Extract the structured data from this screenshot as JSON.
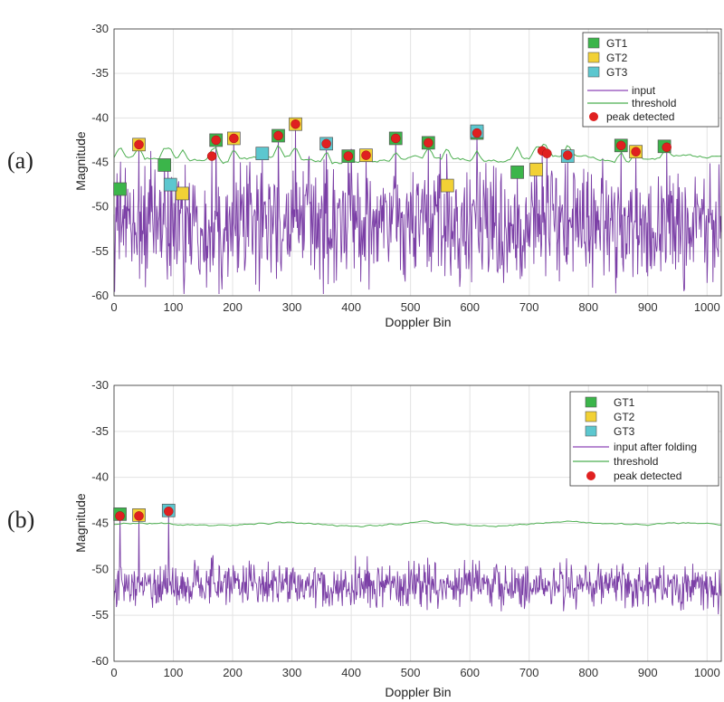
{
  "chart_data": [
    {
      "panel_label": "(a)",
      "type": "line",
      "xlabel": "Doppler Bin",
      "ylabel": "Magnitude",
      "xlim": [
        0,
        1024
      ],
      "ylim": [
        -60,
        -30
      ],
      "xticks": [
        "0",
        "100",
        "200",
        "300",
        "400",
        "500",
        "600",
        "700",
        "800",
        "900",
        "1000"
      ],
      "yticks": [
        "-30",
        "-35",
        "-40",
        "-45",
        "-50",
        "-55",
        "-60"
      ],
      "grid": true,
      "legend": {
        "position": "top-right",
        "entries": [
          {
            "label": "GT1",
            "marker": "square",
            "color": "#3bb54a"
          },
          {
            "label": "GT2",
            "marker": "square",
            "color": "#f2d135"
          },
          {
            "label": "GT3",
            "marker": "square",
            "color": "#5cc7cf"
          },
          {
            "label": "input",
            "marker": "line",
            "color": "#8e44b8"
          },
          {
            "label": "threshold",
            "marker": "line",
            "color": "#4caf50"
          },
          {
            "label": "peak detected",
            "marker": "circle",
            "color": "#e02020"
          }
        ]
      },
      "series": [
        {
          "name": "input",
          "color": "#7b3fa6",
          "noise_level": -52,
          "noise_spread": 3.2
        },
        {
          "name": "threshold",
          "color": "#4caf50",
          "base": -44.6,
          "spread": 0.7
        }
      ],
      "gt1": [
        [
          10,
          -48
        ],
        [
          85,
          -45.3
        ],
        [
          172,
          -42.5
        ],
        [
          277,
          -42
        ],
        [
          395,
          -44.3
        ],
        [
          475,
          -42.3
        ],
        [
          530,
          -42.8
        ],
        [
          612,
          -41.7
        ],
        [
          680,
          -46.1
        ],
        [
          855,
          -43.1
        ],
        [
          928,
          -43.2
        ]
      ],
      "gt2": [
        [
          42,
          -43
        ],
        [
          115,
          -48.5
        ],
        [
          202,
          -42.3
        ],
        [
          306,
          -40.7
        ],
        [
          425,
          -44.2
        ],
        [
          562,
          -47.6
        ],
        [
          712,
          -45.8
        ],
        [
          880,
          -43.8
        ]
      ],
      "gt3": [
        [
          95,
          -47.5
        ],
        [
          250,
          -44
        ],
        [
          358,
          -42.9
        ],
        [
          612,
          -41.5
        ],
        [
          765,
          -44.3
        ]
      ],
      "peaks": [
        [
          42,
          -43
        ],
        [
          165,
          -44.3
        ],
        [
          172,
          -42.5
        ],
        [
          202,
          -42.3
        ],
        [
          277,
          -42
        ],
        [
          306,
          -40.7
        ],
        [
          358,
          -42.9
        ],
        [
          395,
          -44.3
        ],
        [
          425,
          -44.2
        ],
        [
          475,
          -42.3
        ],
        [
          530,
          -42.8
        ],
        [
          612,
          -41.7
        ],
        [
          722,
          -43.7
        ],
        [
          730,
          -44
        ],
        [
          765,
          -44.2
        ],
        [
          855,
          -43.1
        ],
        [
          880,
          -43.8
        ],
        [
          932,
          -43.3
        ]
      ],
      "spikes": [
        [
          10,
          -48
        ],
        [
          42,
          -43
        ],
        [
          85,
          -45.3
        ],
        [
          95,
          -47.5
        ],
        [
          115,
          -48.5
        ],
        [
          165,
          -44.3
        ],
        [
          172,
          -42.5
        ],
        [
          202,
          -42.3
        ],
        [
          250,
          -44
        ],
        [
          277,
          -42
        ],
        [
          306,
          -40.7
        ],
        [
          358,
          -42.9
        ],
        [
          395,
          -44.3
        ],
        [
          425,
          -44.2
        ],
        [
          475,
          -42.3
        ],
        [
          530,
          -42.8
        ],
        [
          562,
          -47.6
        ],
        [
          612,
          -41.7
        ],
        [
          680,
          -46.1
        ],
        [
          712,
          -45.8
        ],
        [
          722,
          -43.7
        ],
        [
          730,
          -44
        ],
        [
          765,
          -44.2
        ],
        [
          855,
          -43.1
        ],
        [
          880,
          -43.8
        ],
        [
          932,
          -43.3
        ]
      ]
    },
    {
      "panel_label": "(b)",
      "type": "line",
      "xlabel": "Doppler Bin",
      "ylabel": "Magnitude",
      "xlim": [
        0,
        1024
      ],
      "ylim": [
        -60,
        -30
      ],
      "xticks": [
        "0",
        "100",
        "200",
        "300",
        "400",
        "500",
        "600",
        "700",
        "800",
        "900",
        "1000"
      ],
      "yticks": [
        "-30",
        "-35",
        "-40",
        "-45",
        "-50",
        "-55",
        "-60"
      ],
      "grid": true,
      "legend": {
        "position": "top-right",
        "entries": [
          {
            "label": "GT1",
            "marker": "square",
            "color": "#3bb54a"
          },
          {
            "label": "GT2",
            "marker": "square",
            "color": "#f2d135"
          },
          {
            "label": "GT3",
            "marker": "square",
            "color": "#5cc7cf"
          },
          {
            "label": "input after folding",
            "marker": "line",
            "color": "#8e44b8"
          },
          {
            "label": "threshold",
            "marker": "line",
            "color": "#4caf50"
          },
          {
            "label": "peak detected",
            "marker": "circle",
            "color": "#e02020"
          }
        ]
      },
      "series": [
        {
          "name": "input after folding",
          "color": "#7b3fa6",
          "noise_level": -51.8,
          "noise_spread": 1.2
        },
        {
          "name": "threshold",
          "color": "#4caf50",
          "base": -45.1,
          "spread": 0.35
        }
      ],
      "gt1": [
        [
          10,
          -44
        ]
      ],
      "gt2": [
        [
          42,
          -44.1
        ]
      ],
      "gt3": [
        [
          92,
          -43.6
        ]
      ],
      "peaks": [
        [
          10,
          -44.2
        ],
        [
          42,
          -44.2
        ],
        [
          92,
          -43.7
        ]
      ],
      "spikes": [
        [
          10,
          -44.2
        ],
        [
          42,
          -44.2
        ],
        [
          92,
          -43.7
        ]
      ]
    }
  ]
}
